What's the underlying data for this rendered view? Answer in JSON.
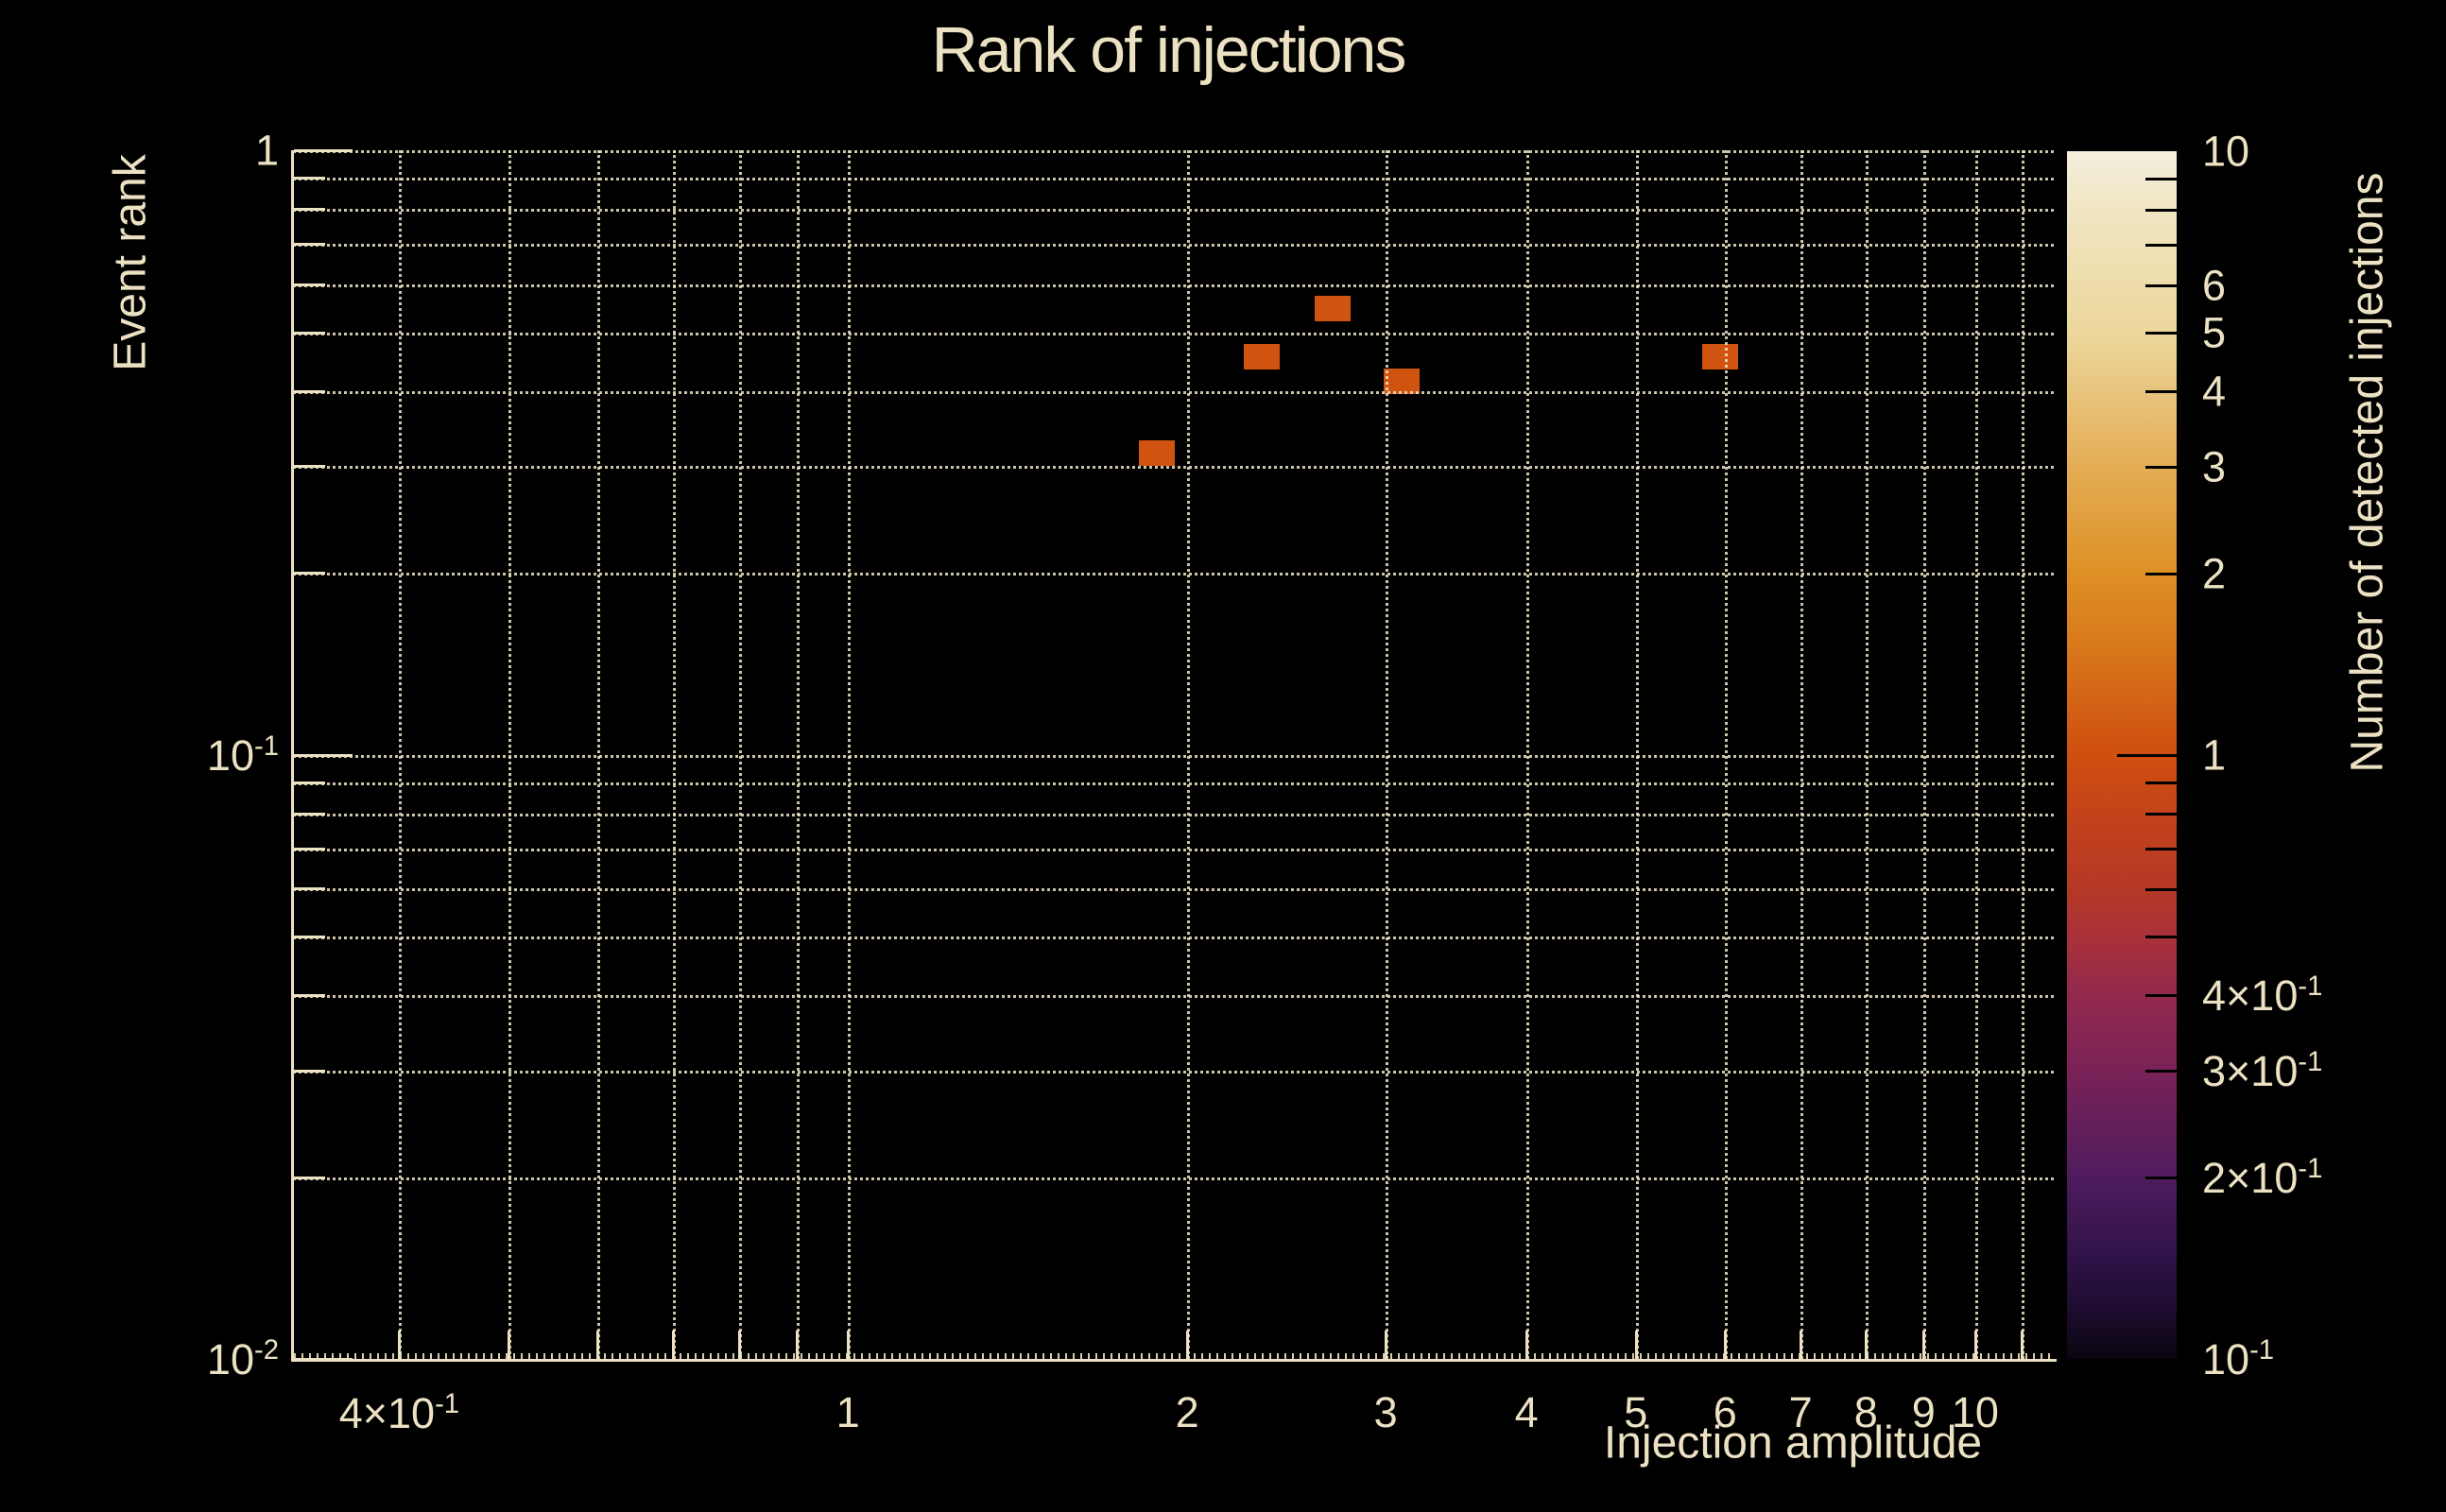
{
  "title": "Rank of injections",
  "colors": {
    "background": "#000000",
    "text": "#ece2c3",
    "axis": "#ece2c3",
    "grid": "#eee5c8",
    "bin_fill": "#d0540f",
    "colorbar_tick": "#000000"
  },
  "chart_data": {
    "type": "heatmap",
    "title": "Rank of injections",
    "xlabel": "Injection amplitude",
    "ylabel": "Event rank",
    "colorbar_label": "Number of detected injections",
    "xscale": "log",
    "yscale": "log",
    "zscale": "log",
    "xlim": [
      0.322,
      11.74
    ],
    "ylim": [
      0.01,
      1.0
    ],
    "zlim": [
      0.1,
      10
    ],
    "grid": true,
    "legend_position": "right-colorbar",
    "x_ticks": [
      {
        "v": 0.4,
        "label": "4×10^-1"
      },
      {
        "v": 0.5
      },
      {
        "v": 0.6
      },
      {
        "v": 0.7
      },
      {
        "v": 0.8
      },
      {
        "v": 0.9
      },
      {
        "v": 1,
        "label": "1"
      },
      {
        "v": 2,
        "label": "2"
      },
      {
        "v": 3,
        "label": "3"
      },
      {
        "v": 4,
        "label": "4"
      },
      {
        "v": 5,
        "label": "5"
      },
      {
        "v": 6,
        "label": "6"
      },
      {
        "v": 7,
        "label": "7"
      },
      {
        "v": 8,
        "label": "8"
      },
      {
        "v": 9,
        "label": "9"
      },
      {
        "v": 10,
        "label": "10"
      },
      {
        "v": 11
      }
    ],
    "y_ticks": [
      {
        "v": 1,
        "label": "1"
      },
      {
        "v": 0.9
      },
      {
        "v": 0.8
      },
      {
        "v": 0.7
      },
      {
        "v": 0.6
      },
      {
        "v": 0.5
      },
      {
        "v": 0.4
      },
      {
        "v": 0.3
      },
      {
        "v": 0.2
      },
      {
        "v": 0.1,
        "label": "10^-1"
      },
      {
        "v": 0.09
      },
      {
        "v": 0.08
      },
      {
        "v": 0.07
      },
      {
        "v": 0.06
      },
      {
        "v": 0.05
      },
      {
        "v": 0.04
      },
      {
        "v": 0.03
      },
      {
        "v": 0.02
      },
      {
        "v": 0.01,
        "label": "10^-2"
      }
    ],
    "colorbar_ticks": [
      {
        "v": 10,
        "label": "10",
        "tick": false
      },
      {
        "v": 9
      },
      {
        "v": 8
      },
      {
        "v": 7
      },
      {
        "v": 6,
        "label": "6"
      },
      {
        "v": 5,
        "label": "5"
      },
      {
        "v": 4,
        "label": "4"
      },
      {
        "v": 3,
        "label": "3"
      },
      {
        "v": 2,
        "label": "2"
      },
      {
        "v": 1,
        "label": "1",
        "long": true
      },
      {
        "v": 0.9
      },
      {
        "v": 0.8
      },
      {
        "v": 0.7
      },
      {
        "v": 0.6
      },
      {
        "v": 0.5
      },
      {
        "v": 0.4,
        "label": "4×10^-1"
      },
      {
        "v": 0.3,
        "label": "3×10^-1"
      },
      {
        "v": 0.2,
        "label": "2×10^-1"
      },
      {
        "v": 0.1,
        "label": "10^-1",
        "tick": false
      }
    ],
    "colormap_stops": [
      {
        "v": 10,
        "color": "#f4efdd"
      },
      {
        "v": 8,
        "color": "#f1e6c3"
      },
      {
        "v": 6,
        "color": "#eedcaa"
      },
      {
        "v": 5,
        "color": "#ecd79c"
      },
      {
        "v": 4,
        "color": "#e8c47d"
      },
      {
        "v": 3,
        "color": "#e4ad55"
      },
      {
        "v": 2,
        "color": "#de9025"
      },
      {
        "v": 1.5,
        "color": "#d8781c"
      },
      {
        "v": 1,
        "color": "#cf4f10"
      },
      {
        "v": 0.8,
        "color": "#c4431a"
      },
      {
        "v": 0.6,
        "color": "#b53826"
      },
      {
        "v": 0.5,
        "color": "#a93139"
      },
      {
        "v": 0.4,
        "color": "#93294e"
      },
      {
        "v": 0.3,
        "color": "#7a2257"
      },
      {
        "v": 0.2,
        "color": "#4f1c5e"
      },
      {
        "v": 0.15,
        "color": "#31134a"
      },
      {
        "v": 0.12,
        "color": "#1c0c2e"
      },
      {
        "v": 0.1,
        "color": "#0a0510"
      }
    ],
    "bin_ratio_x": 1.076,
    "bin_ratio_y": 1.102,
    "points": [
      {
        "x": 1.88,
        "y": 0.315,
        "count": 1
      },
      {
        "x": 2.33,
        "y": 0.455,
        "count": 1
      },
      {
        "x": 2.69,
        "y": 0.547,
        "count": 1
      },
      {
        "x": 3.1,
        "y": 0.415,
        "count": 1
      },
      {
        "x": 5.94,
        "y": 0.455,
        "count": 1
      }
    ]
  }
}
